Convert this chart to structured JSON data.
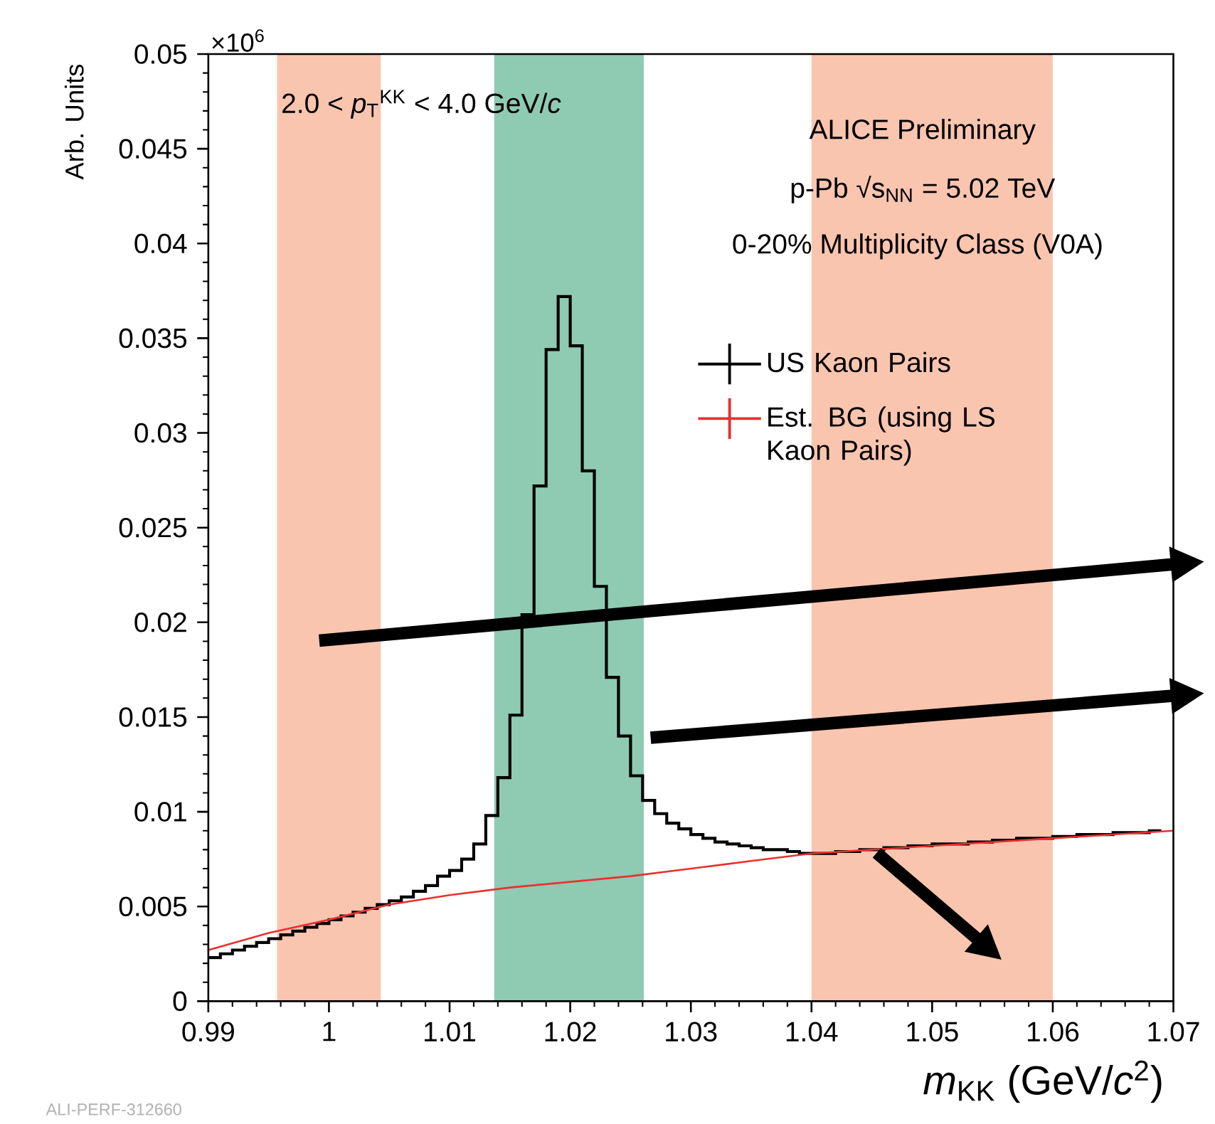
{
  "chart_data": {
    "type": "step",
    "xlabel": "*m*$_{KK}$ (GeV/*c*$^{2}$)",
    "ylabel": "Arb. Units",
    "series": [
      {
        "name": "US Kaon Pairs",
        "color": "#000000",
        "x": [
          0.99,
          0.991,
          0.992,
          0.993,
          0.994,
          0.995,
          0.996,
          0.997,
          0.998,
          0.999,
          1.0,
          1.001,
          1.002,
          1.003,
          1.004,
          1.005,
          1.006,
          1.007,
          1.008,
          1.009,
          1.01,
          1.011,
          1.012,
          1.013,
          1.014,
          1.015,
          1.016,
          1.017,
          1.018,
          1.019,
          1.02,
          1.021,
          1.022,
          1.023,
          1.024,
          1.025,
          1.026,
          1.027,
          1.028,
          1.029,
          1.03,
          1.031,
          1.032,
          1.033,
          1.034,
          1.035,
          1.036,
          1.037,
          1.038,
          1.039,
          1.04,
          1.041,
          1.042,
          1.043,
          1.044,
          1.045,
          1.046,
          1.047,
          1.048,
          1.049,
          1.05,
          1.051,
          1.052,
          1.053,
          1.054,
          1.055,
          1.056,
          1.057,
          1.058,
          1.059,
          1.06,
          1.061,
          1.062,
          1.063,
          1.064,
          1.065,
          1.066,
          1.067,
          1.068,
          1.069
        ],
        "values": [
          0.0023,
          0.0025,
          0.0027,
          0.0029,
          0.0031,
          0.0033,
          0.0035,
          0.0037,
          0.0039,
          0.0041,
          0.0043,
          0.0045,
          0.0047,
          0.0049,
          0.0051,
          0.0053,
          0.0055,
          0.0058,
          0.0061,
          0.0066,
          0.0069,
          0.0075,
          0.0083,
          0.0098,
          0.0118,
          0.0151,
          0.0204,
          0.0272,
          0.0344,
          0.0372,
          0.0346,
          0.028,
          0.0219,
          0.0171,
          0.014,
          0.0119,
          0.0106,
          0.0099,
          0.0094,
          0.0091,
          0.0088,
          0.0086,
          0.0084,
          0.0083,
          0.0082,
          0.0081,
          0.008,
          0.008,
          0.0079,
          0.0078,
          0.0078,
          0.0078,
          0.0079,
          0.0079,
          0.008,
          0.008,
          0.0081,
          0.0081,
          0.0082,
          0.0082,
          0.0083,
          0.0083,
          0.0083,
          0.0084,
          0.0084,
          0.0085,
          0.0085,
          0.0086,
          0.0086,
          0.0086,
          0.0087,
          0.0087,
          0.0088,
          0.0088,
          0.0088,
          0.0089,
          0.0089,
          0.0089,
          0.009,
          0.009
        ]
      },
      {
        "name": "Est. BG (using LS Kaon Pairs)",
        "type": "line",
        "color": "#e8312f",
        "x": [
          0.99,
          0.995,
          1.0,
          1.005,
          1.01,
          1.015,
          1.02,
          1.025,
          1.03,
          1.035,
          1.04,
          1.045,
          1.05,
          1.055,
          1.06,
          1.065,
          1.07
        ],
        "values": [
          0.0027,
          0.0036,
          0.0043,
          0.0051,
          0.0056,
          0.006,
          0.0063,
          0.0066,
          0.007,
          0.0074,
          0.0078,
          0.008,
          0.0082,
          0.0084,
          0.0086,
          0.0088,
          0.009
        ]
      }
    ],
    "xlim": [
      0.99,
      1.07
    ],
    "xticks": [
      0.99,
      1,
      1.01,
      1.02,
      1.03,
      1.04,
      1.05,
      1.06,
      1.07
    ],
    "ylim": [
      0,
      0.05
    ],
    "yticks": [
      0,
      0.005,
      0.01,
      0.015,
      0.02,
      0.025,
      0.03,
      0.035,
      0.04,
      0.045,
      0.05
    ],
    "bands": [
      {
        "axis": "x",
        "from": 0.9957,
        "to": 1.0043,
        "color": "#fac5af"
      },
      {
        "axis": "x",
        "from": 1.0137,
        "to": 1.0261,
        "color": "#8fcab3"
      },
      {
        "axis": "x",
        "from": 1.04,
        "to": 1.06,
        "color": "#fac5af"
      }
    ],
    "annotations": [
      "×10$^{6}$",
      "2.0 < *p*$_{T}$$^{KK}$ < 4.0 GeV/*c*",
      "ALICE Preliminary",
      "p-Pb √s$_{NN}$ = 5.02 TeV",
      "0-20% Multiplicity Class (V0A)",
      "ALI-PERF-312660"
    ],
    "legend": "right"
  }
}
